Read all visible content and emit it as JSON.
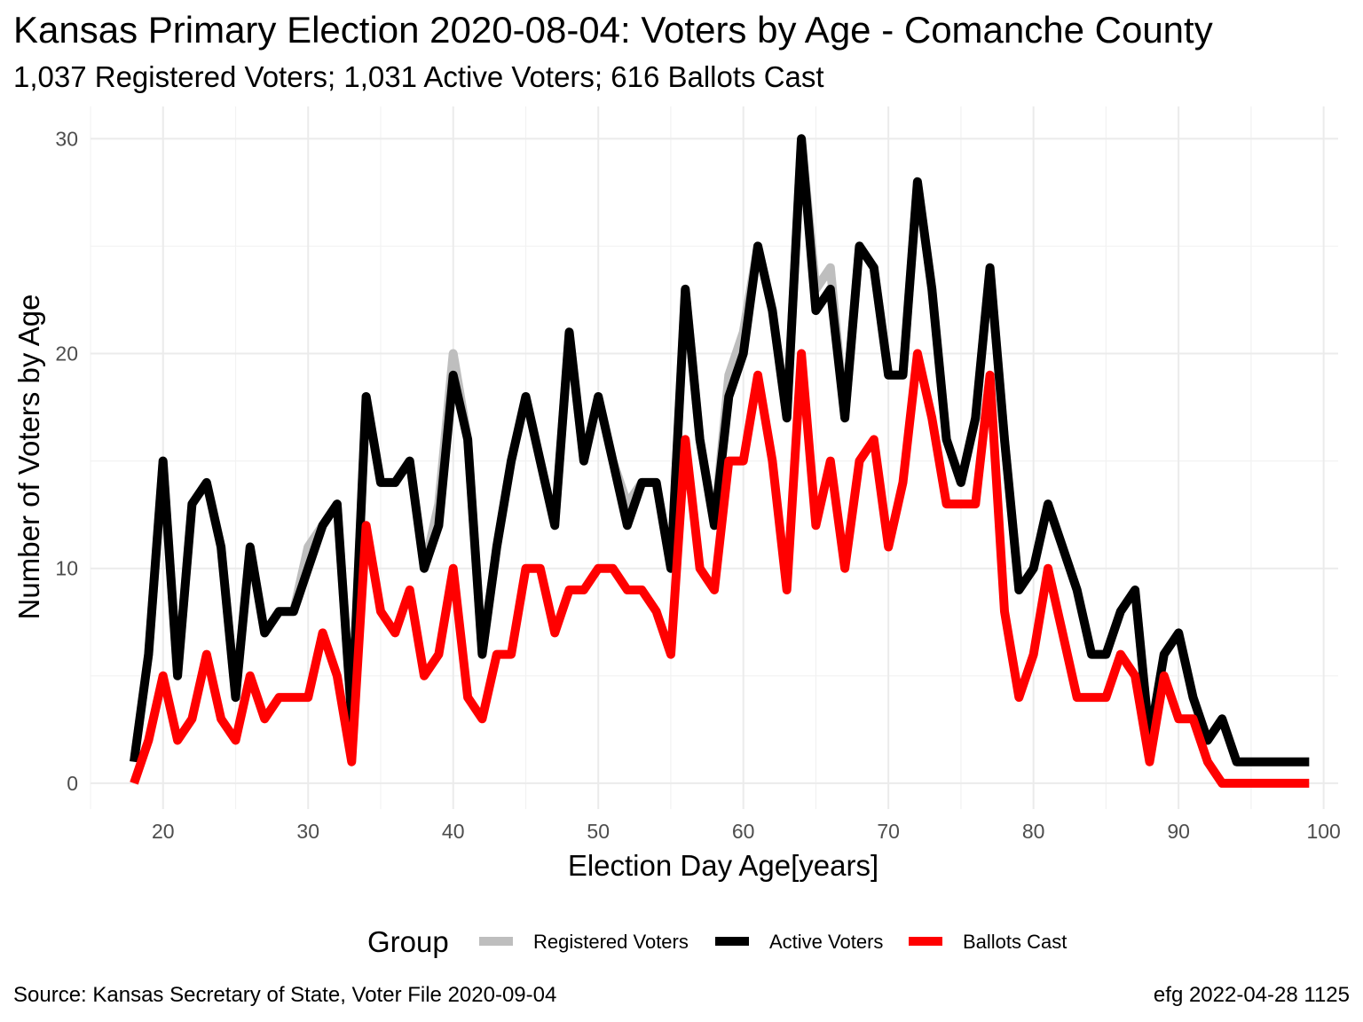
{
  "title": "Kansas Primary Election 2020-08-04:  Voters by Age - Comanche County",
  "subtitle": "1,037 Registered Voters; 1,031 Active Voters; 616 Ballots Cast",
  "footer_left": "Source:  Kansas Secretary of State, Voter File  2020-09-04",
  "footer_right": "efg 2022-04-28 1125",
  "chart_data": {
    "type": "line",
    "xlabel": "Election Day Age[years]",
    "ylabel": "Number of Voters by Age",
    "xlim": [
      15,
      101
    ],
    "ylim": [
      -1.2,
      31.5
    ],
    "x_ticks": [
      20,
      30,
      40,
      50,
      60,
      70,
      80,
      90,
      100
    ],
    "y_ticks": [
      0,
      10,
      20,
      30
    ],
    "grid": true,
    "legend": {
      "title": "Group",
      "position": "bottom"
    },
    "x": [
      18,
      19,
      20,
      21,
      22,
      23,
      24,
      25,
      26,
      27,
      28,
      29,
      30,
      31,
      32,
      33,
      34,
      35,
      36,
      37,
      38,
      39,
      40,
      41,
      42,
      43,
      44,
      45,
      46,
      47,
      48,
      49,
      50,
      51,
      52,
      53,
      54,
      55,
      56,
      57,
      58,
      59,
      60,
      61,
      62,
      63,
      64,
      65,
      66,
      67,
      68,
      69,
      70,
      71,
      72,
      73,
      74,
      75,
      76,
      77,
      78,
      79,
      80,
      81,
      82,
      83,
      84,
      85,
      86,
      87,
      88,
      89,
      90,
      91,
      92,
      93,
      94,
      95,
      96,
      97,
      98,
      99
    ],
    "series": [
      {
        "name": "Registered Voters",
        "color": "#bebebe",
        "width": 10,
        "values": [
          1,
          6,
          15,
          5,
          13,
          14,
          11,
          4,
          11,
          7,
          8,
          8,
          11,
          12,
          13,
          3,
          18,
          14,
          14,
          15,
          10,
          13,
          20,
          16,
          6,
          11,
          15,
          18,
          15,
          12,
          21,
          15,
          18,
          15,
          13,
          14,
          14,
          10,
          23,
          16,
          12,
          19,
          21,
          25,
          22,
          17,
          30,
          23,
          24,
          17,
          25,
          24,
          19,
          19,
          28,
          23,
          16,
          14,
          17,
          24,
          16,
          9,
          10,
          13,
          11,
          9,
          6,
          6,
          8,
          9,
          2,
          6,
          7,
          4,
          2,
          3,
          1,
          1,
          1,
          1,
          1,
          1
        ]
      },
      {
        "name": "Active Voters",
        "color": "#000000",
        "width": 10,
        "values": [
          1,
          6,
          15,
          5,
          13,
          14,
          11,
          4,
          11,
          7,
          8,
          8,
          10,
          12,
          13,
          3,
          18,
          14,
          14,
          15,
          10,
          12,
          19,
          16,
          6,
          11,
          15,
          18,
          15,
          12,
          21,
          15,
          18,
          15,
          12,
          14,
          14,
          10,
          23,
          16,
          12,
          18,
          20,
          25,
          22,
          17,
          30,
          22,
          23,
          17,
          25,
          24,
          19,
          19,
          28,
          23,
          16,
          14,
          17,
          24,
          16,
          9,
          10,
          13,
          11,
          9,
          6,
          6,
          8,
          9,
          2,
          6,
          7,
          4,
          2,
          3,
          1,
          1,
          1,
          1,
          1,
          1
        ]
      },
      {
        "name": "Ballots Cast",
        "color": "#ff0000",
        "width": 10,
        "values": [
          0,
          2,
          5,
          2,
          3,
          6,
          3,
          2,
          5,
          3,
          4,
          4,
          4,
          7,
          5,
          1,
          12,
          8,
          7,
          9,
          5,
          6,
          10,
          4,
          3,
          6,
          6,
          10,
          10,
          7,
          9,
          9,
          10,
          10,
          9,
          9,
          8,
          6,
          16,
          10,
          9,
          15,
          15,
          19,
          15,
          9,
          20,
          12,
          15,
          10,
          15,
          16,
          11,
          14,
          20,
          17,
          13,
          13,
          13,
          19,
          8,
          4,
          6,
          10,
          7,
          4,
          4,
          4,
          6,
          5,
          1,
          5,
          3,
          3,
          1,
          0,
          0,
          0,
          0,
          0,
          0,
          0
        ]
      }
    ]
  }
}
